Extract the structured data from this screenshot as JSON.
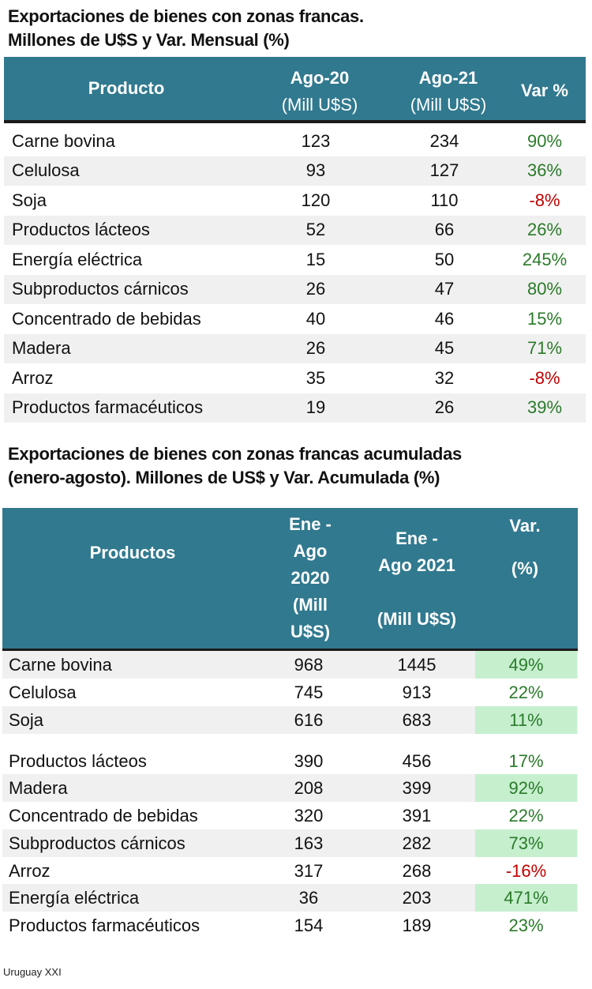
{
  "table1": {
    "title_line1": "Exportaciones de bienes con zonas francas.",
    "title_line2": "Millones de U$S y Var. Mensual (%)",
    "headers": {
      "product": "Producto",
      "col1_line1": "Ago-20",
      "col1_line2": "(Mill U$S)",
      "col2_line1": "Ago-21",
      "col2_line2": "(Mill U$S)",
      "var": "Var %"
    },
    "rows": [
      {
        "product": "Carne bovina",
        "v1": "123",
        "v2": "234",
        "var": "90%"
      },
      {
        "product": "Celulosa",
        "v1": "93",
        "v2": "127",
        "var": "36%"
      },
      {
        "product": "Soja",
        "v1": "120",
        "v2": "110",
        "var": "-8%"
      },
      {
        "product": "Productos lácteos",
        "v1": "52",
        "v2": "66",
        "var": "26%"
      },
      {
        "product": "Energía eléctrica",
        "v1": "15",
        "v2": "50",
        "var": "245%"
      },
      {
        "product": "Subproductos cárnicos",
        "v1": "26",
        "v2": "47",
        "var": "80%"
      },
      {
        "product": "Concentrado de bebidas",
        "v1": "40",
        "v2": "46",
        "var": "15%"
      },
      {
        "product": "Madera",
        "v1": "26",
        "v2": "45",
        "var": "71%"
      },
      {
        "product": "Arroz",
        "v1": "35",
        "v2": "32",
        "var": "-8%"
      },
      {
        "product": "Productos farmacéuticos",
        "v1": "19",
        "v2": "26",
        "var": "39%"
      }
    ]
  },
  "table2": {
    "title_line1": "Exportaciones de bienes con zonas francas acumuladas",
    "title_line2": "(enero-agosto).  Millones de US$ y  Var. Acumulada (%)",
    "headers": {
      "product": "Productos",
      "col1": [
        "Ene -",
        "Ago",
        "2020",
        "(Mill",
        "U$S)"
      ],
      "col2_line1": "Ene -",
      "col2_line2": "Ago 2021",
      "col2_line3": "(Mill U$S)",
      "var_line1": "Var.",
      "var_line2": "(%)"
    },
    "rows": [
      {
        "product": "Carne bovina",
        "v1": "968",
        "v2": "1445",
        "var": "49%",
        "highlight": true
      },
      {
        "product": "Celulosa",
        "v1": "745",
        "v2": "913",
        "var": "22%",
        "highlight": false
      },
      {
        "product": "Soja",
        "v1": "616",
        "v2": "683",
        "var": "11%",
        "highlight": true
      },
      {
        "product": "Productos lácteos",
        "v1": "390",
        "v2": "456",
        "var": "17%",
        "highlight": false
      },
      {
        "product": "Madera",
        "v1": "208",
        "v2": "399",
        "var": "92%",
        "highlight": true
      },
      {
        "product": "Concentrado de bebidas",
        "v1": "320",
        "v2": "391",
        "var": "22%",
        "highlight": false
      },
      {
        "product": "Subproductos cárnicos",
        "v1": "163",
        "v2": "282",
        "var": "73%",
        "highlight": true
      },
      {
        "product": "Arroz",
        "v1": "317",
        "v2": "268",
        "var": "-16%",
        "highlight": false
      },
      {
        "product": "Energía eléctrica",
        "v1": "36",
        "v2": "203",
        "var": "471%",
        "highlight": true
      },
      {
        "product": "Productos farmacéuticos",
        "v1": "154",
        "v2": "189",
        "var": "23%",
        "highlight": false
      }
    ]
  },
  "colors": {
    "header_bg": "#31798f",
    "positive": "#2a7a2a",
    "negative": "#c00000",
    "highlight": "#c6efce",
    "stripe": "#f0f0f0"
  },
  "footer": {
    "source": "Uruguay XXI"
  }
}
